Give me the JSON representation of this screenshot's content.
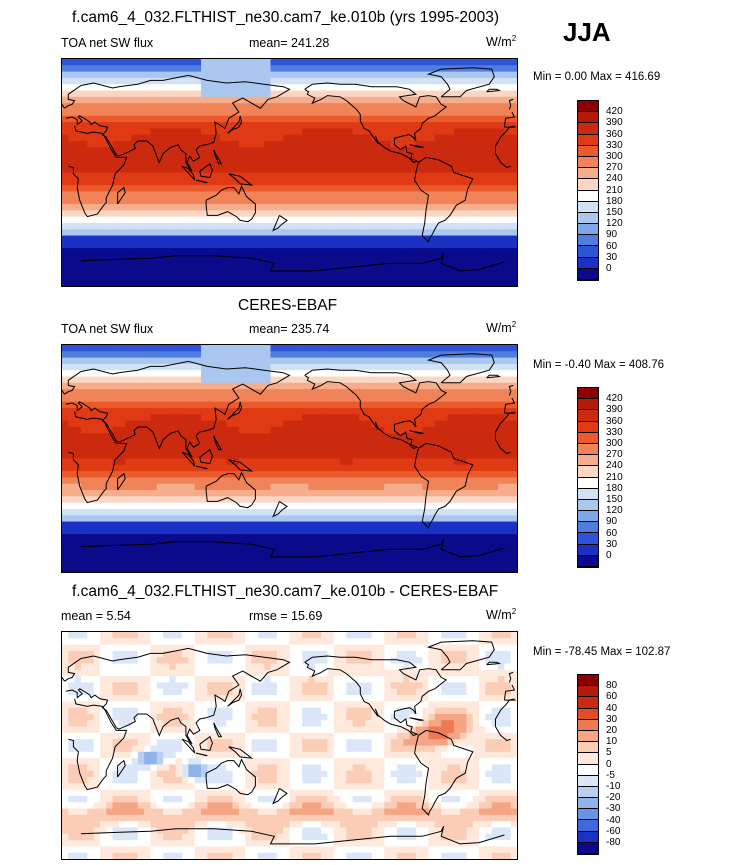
{
  "season": "JJA",
  "panels": [
    {
      "id": "model",
      "title": "f.cam6_4_032.FLTHIST_ne30.cam7_ke.010b (yrs 1995-2003)",
      "left_label": "TOA net SW flux",
      "center_label": "mean= 241.28",
      "units": "W/m",
      "units_sup": "2",
      "minmax": "Min =   0.00 Max = 416.69",
      "colorbar_ticks": [
        "420",
        "390",
        "360",
        "330",
        "300",
        "270",
        "240",
        "210",
        "180",
        "150",
        "120",
        "90",
        "60",
        "30",
        "0"
      ]
    },
    {
      "id": "obs",
      "title": "CERES-EBAF",
      "left_label": "TOA net SW flux",
      "center_label": "mean= 235.74",
      "units": "W/m",
      "units_sup": "2",
      "minmax": "Min =  -0.40 Max = 408.76",
      "colorbar_ticks": [
        "420",
        "390",
        "360",
        "330",
        "300",
        "270",
        "240",
        "210",
        "180",
        "150",
        "120",
        "90",
        "60",
        "30",
        "0"
      ]
    },
    {
      "id": "diff",
      "title": "f.cam6_4_032.FLTHIST_ne30.cam7_ke.010b - CERES-EBAF",
      "left_label": "mean =   5.54",
      "center_label": "rmse =  15.69",
      "units": "W/m",
      "units_sup": "2",
      "minmax": "Min = -78.45 Max = 102.87",
      "colorbar_ticks": [
        "80",
        "60",
        "40",
        "30",
        "20",
        "10",
        "5",
        "0",
        "-5",
        "-10",
        "-20",
        "-30",
        "-40",
        "-60",
        "-80"
      ]
    }
  ],
  "colors": {
    "abs_scale": [
      "#8b0000",
      "#b51a08",
      "#cc2a0e",
      "#df3a14",
      "#ea5a2a",
      "#f08458",
      "#f6ad8c",
      "#fbd6c2",
      "#ffffff",
      "#d2e2f6",
      "#a9c7ef",
      "#7ea6e8",
      "#4f7ee0",
      "#2f54d8",
      "#1b31c4",
      "#0a0a8a"
    ],
    "diff_scale": [
      "#8b0000",
      "#b51a08",
      "#cc2a0e",
      "#e04c24",
      "#ee7a52",
      "#f6a584",
      "#fbcdb6",
      "#fee9dc",
      "#ffffff",
      "#dbe7f8",
      "#b9cff2",
      "#91b3ec",
      "#6a92e4",
      "#3f68dc",
      "#1b31c4",
      "#0a0a8a"
    ]
  }
}
